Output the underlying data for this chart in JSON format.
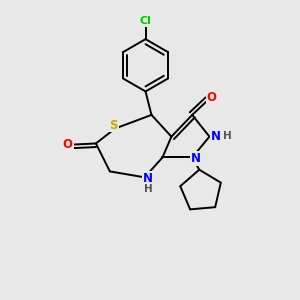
{
  "bg_color": "#e8e8e8",
  "bond_color": "#000000",
  "atom_colors": {
    "Cl": "#00cc00",
    "S": "#ccaa00",
    "N": "#0000ff",
    "O": "#ff0000",
    "H": "#555555",
    "C": "#000000"
  },
  "lw": 1.4
}
